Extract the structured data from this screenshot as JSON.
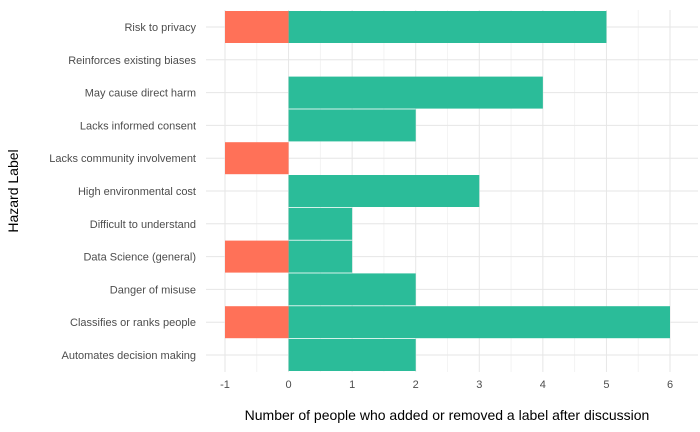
{
  "chart_data": {
    "type": "bar",
    "orientation": "horizontal",
    "xlabel": "Number of people who added or removed a label after discussion",
    "ylabel": "Hazard Label",
    "xlim": [
      -1,
      6
    ],
    "x_ticks": [
      "-1",
      "0",
      "1",
      "2",
      "3",
      "4",
      "5",
      "6"
    ],
    "grid": true,
    "legend": "none",
    "categories": [
      "Risk to privacy",
      "Reinforces existing biases",
      "May cause direct harm",
      "Lacks informed consent",
      "Lacks community involvement",
      "High environmental cost",
      "Difficult to understand",
      "Data Science (general)",
      "Danger of misuse",
      "Classifies or ranks people",
      "Automates decision making"
    ],
    "series": [
      {
        "color": "#2BBC99",
        "values": [
          5,
          0,
          4,
          2,
          0,
          3,
          1,
          1,
          2,
          6,
          2
        ]
      },
      {
        "color": "#FF7158",
        "values": [
          -1,
          0,
          0,
          0,
          -1,
          0,
          0,
          -1,
          0,
          -1,
          0
        ]
      }
    ]
  }
}
